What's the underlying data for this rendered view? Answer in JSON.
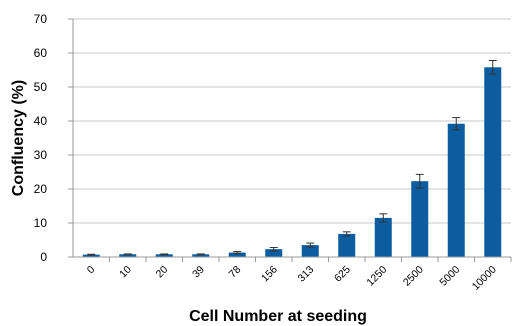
{
  "chart_data": {
    "type": "bar",
    "title": "",
    "xlabel": "Cell Number at seeding",
    "ylabel": "Confluency (%)",
    "ylim": [
      0,
      70
    ],
    "yticks": [
      0,
      10,
      20,
      30,
      40,
      50,
      60,
      70
    ],
    "categories": [
      "0",
      "10",
      "20",
      "39",
      "78",
      "156",
      "313",
      "625",
      "1250",
      "2500",
      "5000",
      "10000"
    ],
    "values": [
      0.7,
      0.8,
      0.8,
      0.8,
      1.3,
      2.3,
      3.5,
      6.8,
      11.5,
      22.3,
      39.2,
      55.8
    ],
    "errors": [
      0.1,
      0.1,
      0.1,
      0.1,
      0.3,
      0.5,
      0.6,
      0.6,
      1.2,
      2.0,
      1.8,
      2.0
    ],
    "grid": true,
    "colors": {
      "bar": "#0b5d9f",
      "grid": "#c8c8c8",
      "error_bar": "#333333"
    }
  }
}
